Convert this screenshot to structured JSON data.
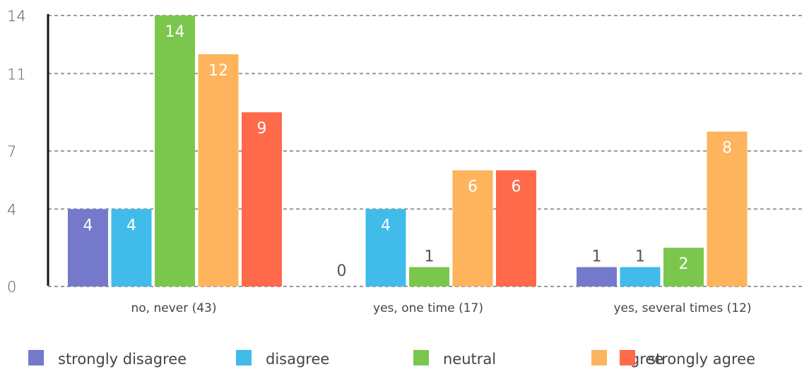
{
  "chart_data": {
    "type": "bar",
    "categories": [
      "no, never (43)",
      "yes, one time (17)",
      "yes, several times (12)"
    ],
    "series": [
      {
        "name": "strongly disagree",
        "color": "#7479CB",
        "values": [
          4,
          0,
          1
        ]
      },
      {
        "name": "disagree",
        "color": "#41BBE9",
        "values": [
          4,
          4,
          1
        ]
      },
      {
        "name": "neutral",
        "color": "#7BC74D",
        "values": [
          14,
          1,
          2
        ]
      },
      {
        "name": "agree",
        "color": "#FDB45C",
        "values": [
          12,
          6,
          8
        ]
      },
      {
        "name": "strongly agree",
        "color": "#FF6A4B",
        "values": [
          9,
          6,
          0
        ]
      }
    ],
    "y_ticks": [
      "0",
      "4",
      "7",
      "11",
      "14"
    ],
    "ylim": [
      0,
      14
    ],
    "grid": true,
    "legend": "bottom",
    "title": "",
    "xlabel": "",
    "ylabel": ""
  }
}
